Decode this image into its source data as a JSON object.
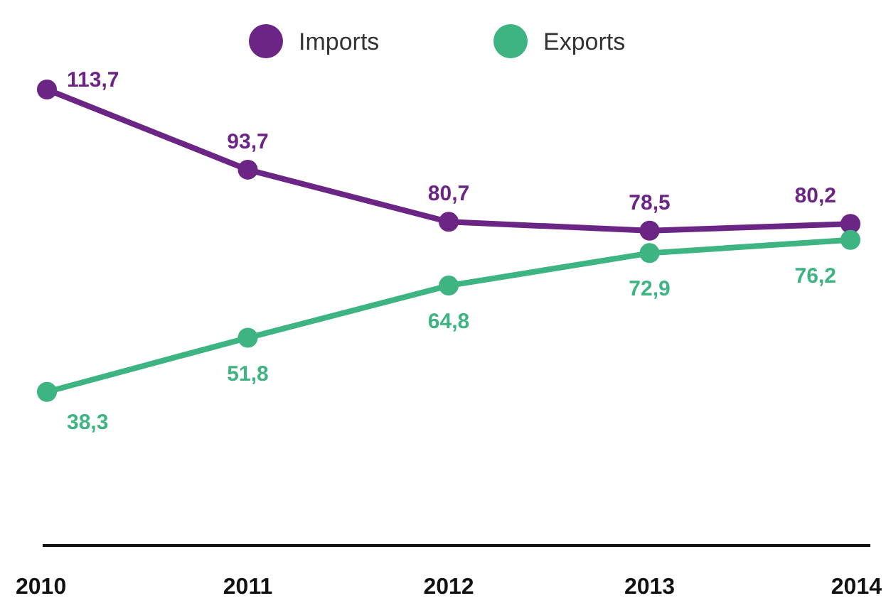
{
  "chart_data": {
    "type": "line",
    "categories": [
      "2010",
      "2011",
      "2012",
      "2013",
      "2014"
    ],
    "series": [
      {
        "name": "Imports",
        "color": "#6b2585",
        "values": [
          113.7,
          93.7,
          80.7,
          78.5,
          80.2
        ],
        "value_labels": [
          "113,7",
          "93,7",
          "80,7",
          "78,5",
          "80,2"
        ]
      },
      {
        "name": "Exports",
        "color": "#3db482",
        "values": [
          38.3,
          51.8,
          64.8,
          72.9,
          76.2
        ],
        "value_labels": [
          "38,3",
          "51,8",
          "64,8",
          "72,9",
          "76,2"
        ]
      }
    ],
    "legend": "top",
    "marker": "circle",
    "line_style": "solid"
  }
}
